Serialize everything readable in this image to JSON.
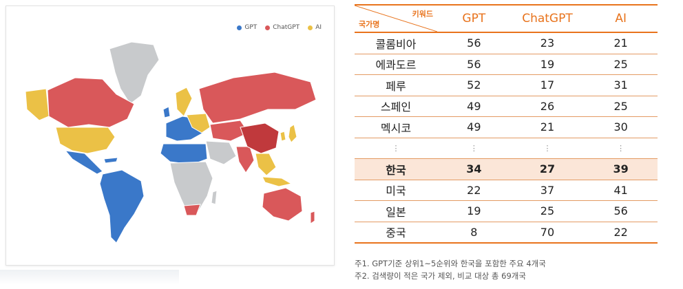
{
  "legend": [
    {
      "label": "GPT",
      "color": "#3a78c9"
    },
    {
      "label": "ChatGPT",
      "color": "#d9585a"
    },
    {
      "label": "AI",
      "color": "#ebc146"
    }
  ],
  "map_colors": {
    "gpt": "#3a78c9",
    "chatgpt": "#d9585a",
    "ai": "#ebc146",
    "none": "#c8cacc"
  },
  "table": {
    "corner_keyword": "키워드",
    "corner_country": "국가명",
    "columns": [
      "GPT",
      "ChatGPT",
      "AI"
    ]
  },
  "chart_data": {
    "type": "table",
    "columns": [
      "국가명",
      "GPT",
      "ChatGPT",
      "AI"
    ],
    "rows": [
      {
        "country": "콜롬비아",
        "values": [
          "56",
          "23",
          "21"
        ]
      },
      {
        "country": "에콰도르",
        "values": [
          "56",
          "19",
          "25"
        ]
      },
      {
        "country": "페루",
        "values": [
          "52",
          "17",
          "31"
        ]
      },
      {
        "country": "스페인",
        "values": [
          "49",
          "26",
          "25"
        ]
      },
      {
        "country": "멕시코",
        "values": [
          "49",
          "21",
          "30"
        ]
      },
      {
        "country": "⋮",
        "values": [
          "⋮",
          "⋮",
          "⋮"
        ],
        "ellipsis": true
      },
      {
        "country": "한국",
        "values": [
          "34",
          "27",
          "39"
        ],
        "highlight": true
      },
      {
        "country": "미국",
        "values": [
          "22",
          "37",
          "41"
        ]
      },
      {
        "country": "일본",
        "values": [
          "19",
          "25",
          "56"
        ]
      },
      {
        "country": "중국",
        "values": [
          "8",
          "70",
          "22"
        ]
      }
    ]
  },
  "notes": [
    "주1. GPT기준 상위1~5순위와 한국을 포함한 주요 4개국",
    "주2. 검색량이 적은 국가 제외, 비교 대상 총 69개국"
  ]
}
